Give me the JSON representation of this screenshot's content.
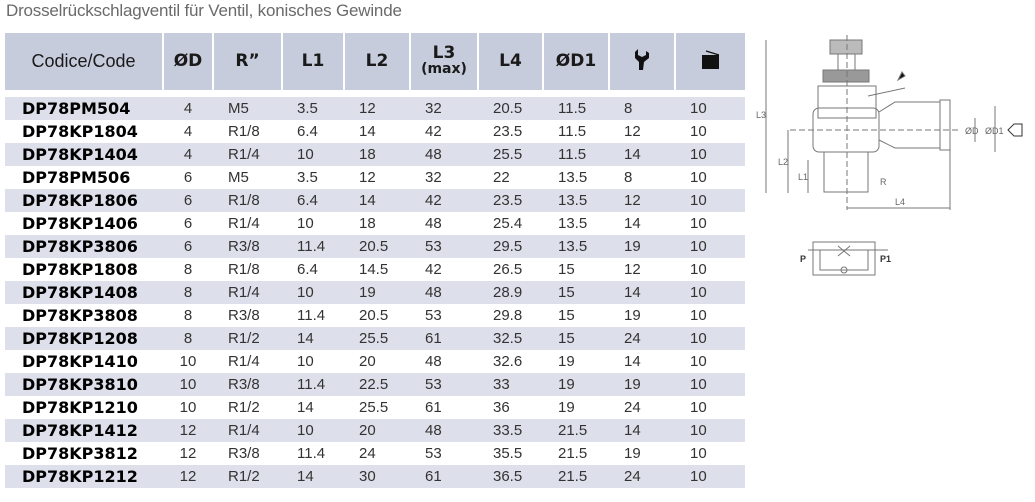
{
  "title": "Drosselrückschlagventil für Ventil, konisches Gewinde",
  "table": {
    "headers": [
      "Codice/Code",
      "ØD",
      "R”",
      "L1",
      "L2",
      "L3",
      "(max)",
      "L4",
      "ØD1"
    ],
    "header_icons": [
      "wrench-icon",
      "package-box-icon"
    ],
    "rows": [
      [
        "DP78PM504",
        "4",
        "M5",
        "3.5",
        "12",
        "32",
        "20.5",
        "11.5",
        "8",
        "10"
      ],
      [
        "DP78KP1804",
        "4",
        "R1/8",
        "6.4",
        "14",
        "42",
        "23.5",
        "11.5",
        "12",
        "10"
      ],
      [
        "DP78KP1404",
        "4",
        "R1/4",
        "10",
        "18",
        "48",
        "25.5",
        "11.5",
        "14",
        "10"
      ],
      [
        "DP78PM506",
        "6",
        "M5",
        "3.5",
        "12",
        "32",
        "22",
        "13.5",
        "8",
        "10"
      ],
      [
        "DP78KP1806",
        "6",
        "R1/8",
        "6.4",
        "14",
        "42",
        "23.5",
        "13.5",
        "12",
        "10"
      ],
      [
        "DP78KP1406",
        "6",
        "R1/4",
        "10",
        "18",
        "48",
        "25.4",
        "13.5",
        "14",
        "10"
      ],
      [
        "DP78KP3806",
        "6",
        "R3/8",
        "11.4",
        "20.5",
        "53",
        "29.5",
        "13.5",
        "19",
        "10"
      ],
      [
        "DP78KP1808",
        "8",
        "R1/8",
        "6.4",
        "14.5",
        "42",
        "26.5",
        "15",
        "12",
        "10"
      ],
      [
        "DP78KP1408",
        "8",
        "R1/4",
        "10",
        "19",
        "48",
        "28.9",
        "15",
        "14",
        "10"
      ],
      [
        "DP78KP3808",
        "8",
        "R3/8",
        "11.4",
        "20.5",
        "53",
        "29.8",
        "15",
        "19",
        "10"
      ],
      [
        "DP78KP1208",
        "8",
        "R1/2",
        "14",
        "25.5",
        "61",
        "32.5",
        "15",
        "24",
        "10"
      ],
      [
        "DP78KP1410",
        "10",
        "R1/4",
        "10",
        "20",
        "48",
        "32.6",
        "19",
        "14",
        "10"
      ],
      [
        "DP78KP3810",
        "10",
        "R3/8",
        "11.4",
        "22.5",
        "53",
        "33",
        "19",
        "19",
        "10"
      ],
      [
        "DP78KP1210",
        "10",
        "R1/2",
        "14",
        "25.5",
        "61",
        "36",
        "19",
        "24",
        "10"
      ],
      [
        "DP78KP1412",
        "12",
        "R1/4",
        "10",
        "20",
        "48",
        "33.5",
        "21.5",
        "14",
        "10"
      ],
      [
        "DP78KP3812",
        "12",
        "R3/8",
        "11.4",
        "24",
        "53",
        "35.5",
        "21.5",
        "19",
        "10"
      ],
      [
        "DP78KP1212",
        "12",
        "R1/2",
        "14",
        "30",
        "61",
        "36.5",
        "21.5",
        "24",
        "10"
      ]
    ]
  },
  "diagram": {
    "labels": [
      "L3",
      "L2",
      "L1",
      "L4",
      "ØD",
      "ØD1",
      "R",
      "P",
      "P1"
    ]
  }
}
